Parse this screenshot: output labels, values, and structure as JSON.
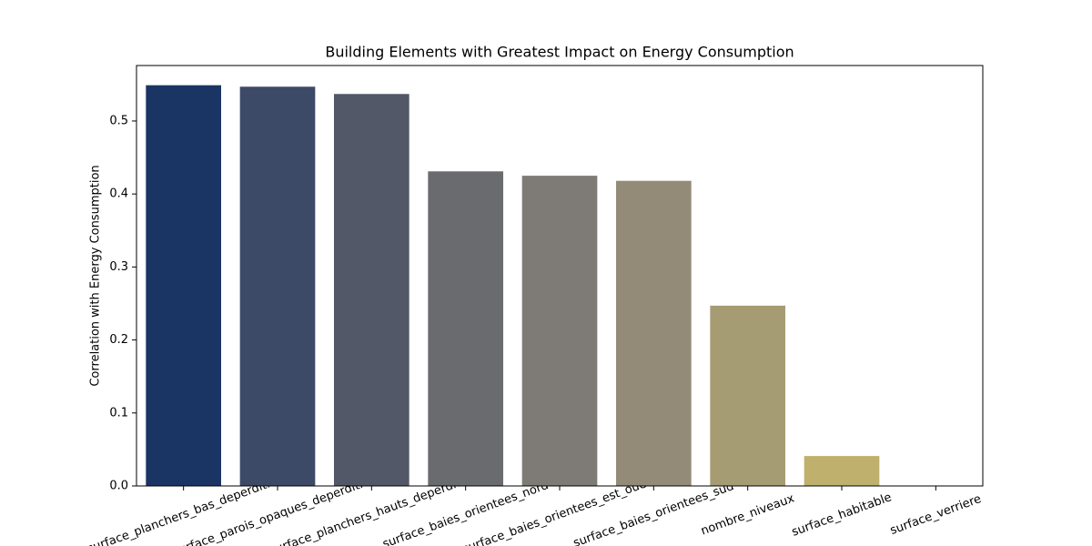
{
  "chart_data": {
    "type": "bar",
    "title": "Building Elements with Greatest Impact on Energy Consumption",
    "y_label": "Correlation with Energy Consumption",
    "categories": [
      "surface_planchers_bas_deperditifs",
      "surface_parois_opaques_deperditives",
      "surface_planchers_hauts_deperditifs",
      "surface_baies_orientees_nord",
      "surface_baies_orientees_est_ouest",
      "surface_baies_orientees_sud",
      "nombre_niveaux",
      "surface_habitable",
      "surface_verriere"
    ],
    "values": [
      0.549,
      0.547,
      0.537,
      0.431,
      0.425,
      0.418,
      0.247,
      0.041,
      0.0
    ],
    "colors": [
      "#1a3564",
      "#3d4a67",
      "#525868",
      "#6a6b6f",
      "#7e7b77",
      "#938b78",
      "#a69c74",
      "#bfb06d",
      "#d4c35f"
    ],
    "ylim": [
      0,
      0.576
    ],
    "yticks": [
      0.0,
      0.1,
      0.2,
      0.3,
      0.4,
      0.5
    ],
    "grid": false
  }
}
